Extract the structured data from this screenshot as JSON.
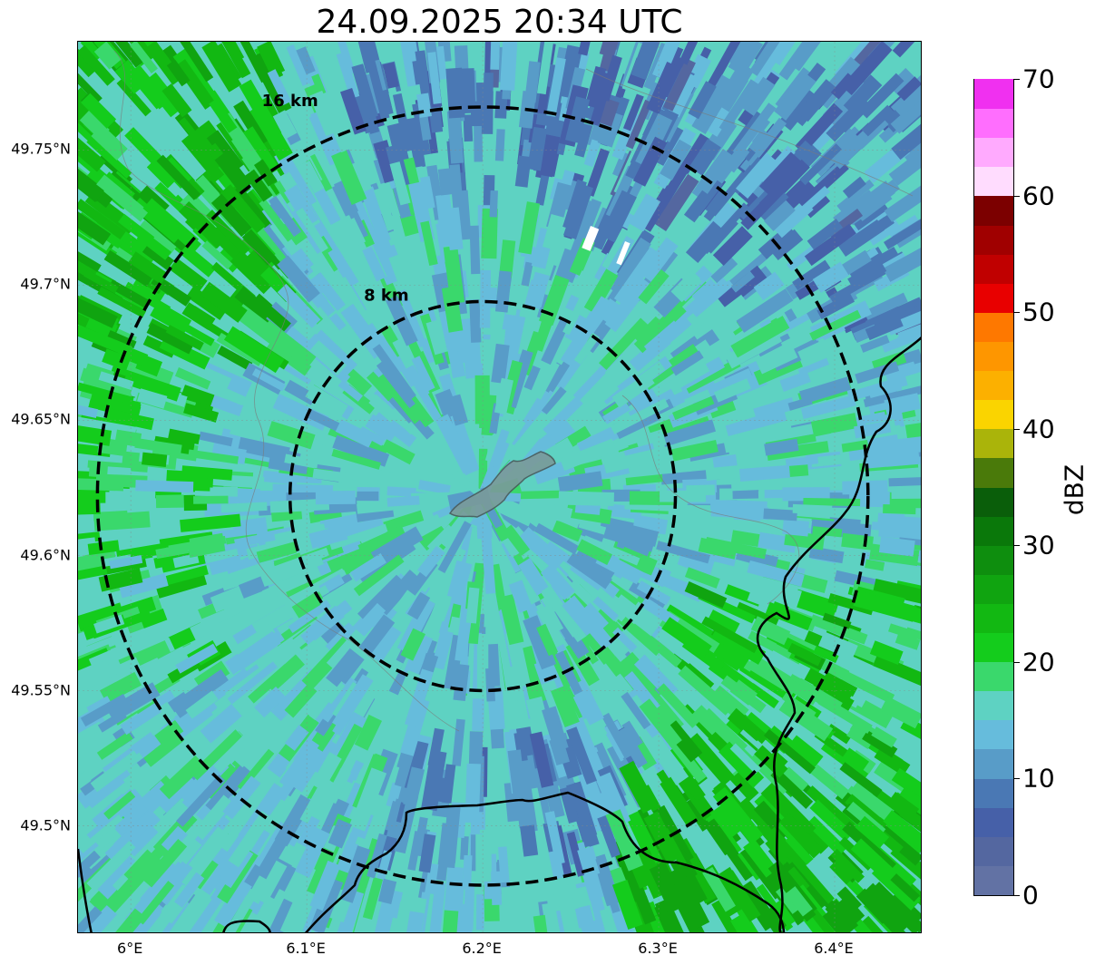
{
  "title": "24.09.2025 20:34 UTC",
  "map": {
    "extent": {
      "lon": [
        5.97,
        6.45
      ],
      "lat": [
        49.46,
        49.79
      ]
    },
    "radar_center": {
      "lon": 6.2,
      "lat": 49.622
    },
    "gridlines": true,
    "lat_ticks": [
      "49.75°N",
      "49.7°N",
      "49.65°N",
      "49.6°N",
      "49.55°N",
      "49.5°N"
    ],
    "lon_ticks": [
      "6°E",
      "6.1°E",
      "6.2°E",
      "6.3°E",
      "6.4°E"
    ],
    "range_rings": [
      {
        "label": "8 km",
        "radius_km": 8
      },
      {
        "label": "16 km",
        "radius_km": 16
      }
    ]
  },
  "colorbar": {
    "unit": "dBZ",
    "range": [
      0,
      70
    ],
    "ticks": [
      "0",
      "10",
      "20",
      "30",
      "40",
      "50",
      "60",
      "70"
    ],
    "colors": [
      "#6272a4",
      "#5467a0",
      "#4660a8",
      "#4a78b4",
      "#589cc8",
      "#66bcdc",
      "#5ed2c2",
      "#3ad86c",
      "#14cc1c",
      "#12b812",
      "#10a410",
      "#0e8e0e",
      "#0a780a",
      "#0a5e0a",
      "#4a7a0a",
      "#aab40a",
      "#fad400",
      "#fcb000",
      "#fe9600",
      "#fe7800",
      "#e80000",
      "#c00000",
      "#a00000",
      "#7c0000",
      "#ffdcfe",
      "#ffaafe",
      "#ff6efe",
      "#f030f0"
    ]
  }
}
